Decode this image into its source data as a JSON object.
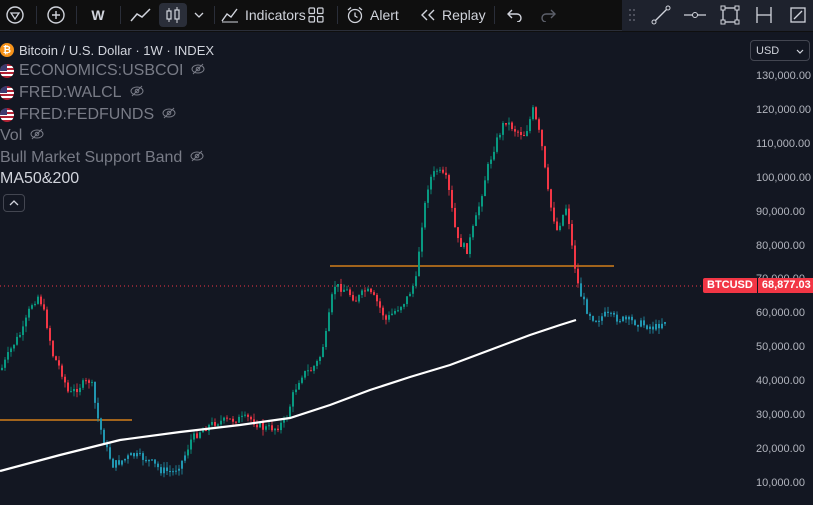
{
  "toolbar": {
    "interval": "W",
    "indicators_label": "Indicators",
    "alert_label": "Alert",
    "replay_label": "Replay"
  },
  "legend": {
    "symbol": "Bitcoin / U.S. Dollar · 1W · INDEX",
    "studies": [
      {
        "label": "ECONOMICS:USBCOI"
      },
      {
        "label": "FRED:WALCL"
      },
      {
        "label": "FRED:FEDFUNDS"
      },
      {
        "label": "Vol"
      },
      {
        "label": "Bull Market Support Band"
      },
      {
        "label": "MA50&200"
      }
    ]
  },
  "currency": "USD",
  "price_axis": {
    "ticks": [
      "130,000.00",
      "120,000.00",
      "110,000.00",
      "100,000.00",
      "90,000.00",
      "80,000.00",
      "70,000.00",
      "60,000.00",
      "50,000.00",
      "40,000.00",
      "30,000.00",
      "20,000.00",
      "10,000.00"
    ]
  },
  "last_price": {
    "symbol": "BTCUSD",
    "value": "68,877.03"
  },
  "colors": {
    "up": "#089981",
    "down": "#f23645",
    "recent": "#2196b0",
    "level_line": "#f7931a",
    "ma_line": "#ffffff",
    "background": "#131722"
  }
}
